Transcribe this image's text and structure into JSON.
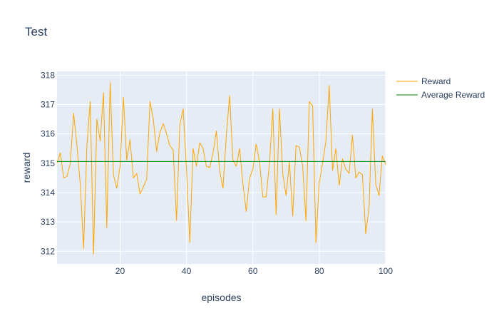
{
  "chart_data": {
    "type": "line",
    "title": "Test",
    "xlabel": "episodes",
    "ylabel": "reward",
    "xlim": [
      1,
      100
    ],
    "ylim": [
      311.57,
      318.13
    ],
    "x_ticks": [
      20,
      40,
      60,
      80,
      100
    ],
    "y_ticks": [
      312,
      313,
      314,
      315,
      316,
      317,
      318
    ],
    "grid": true,
    "legend": "top-right",
    "series": [
      {
        "name": "Reward",
        "color": "#ffa500",
        "values": [
          315.0,
          315.35,
          314.5,
          314.55,
          315.0,
          316.7,
          315.6,
          314.3,
          312.1,
          315.6,
          317.1,
          311.9,
          316.5,
          315.75,
          317.4,
          312.8,
          317.75,
          314.6,
          314.15,
          314.9,
          317.25,
          315.1,
          315.8,
          314.5,
          314.65,
          313.95,
          314.2,
          314.45,
          317.1,
          316.5,
          315.4,
          316.05,
          316.35,
          316.0,
          315.6,
          315.45,
          313.05,
          316.3,
          316.85,
          314.8,
          312.3,
          315.5,
          314.9,
          315.7,
          315.5,
          314.9,
          314.85,
          315.35,
          316.1,
          314.75,
          314.15,
          315.95,
          317.3,
          315.1,
          314.9,
          315.5,
          314.3,
          313.35,
          314.5,
          314.8,
          315.65,
          315.05,
          313.85,
          313.85,
          315.0,
          316.85,
          313.25,
          316.85,
          314.65,
          313.9,
          315.05,
          313.2,
          315.6,
          315.55,
          314.9,
          313.05,
          317.1,
          316.95,
          312.3,
          314.35,
          315.0,
          315.75,
          317.65,
          314.75,
          315.5,
          314.25,
          315.15,
          314.8,
          314.65,
          315.95,
          314.5,
          314.7,
          314.6,
          312.6,
          313.5,
          316.85,
          314.3,
          313.9,
          315.25,
          314.95
        ]
      },
      {
        "name": "Average Reward",
        "color": "#008000",
        "values": [
          315.06,
          315.06,
          315.06,
          315.06,
          315.06,
          315.06,
          315.06,
          315.06,
          315.06,
          315.06,
          315.06,
          315.06,
          315.06,
          315.06,
          315.06,
          315.06,
          315.06,
          315.06,
          315.06,
          315.06,
          315.06,
          315.06,
          315.06,
          315.06,
          315.06,
          315.06,
          315.06,
          315.06,
          315.06,
          315.06,
          315.06,
          315.06,
          315.06,
          315.06,
          315.06,
          315.06,
          315.06,
          315.06,
          315.06,
          315.06,
          315.06,
          315.06,
          315.06,
          315.06,
          315.06,
          315.06,
          315.06,
          315.06,
          315.06,
          315.06,
          315.06,
          315.06,
          315.06,
          315.06,
          315.06,
          315.06,
          315.06,
          315.06,
          315.06,
          315.06,
          315.06,
          315.06,
          315.06,
          315.06,
          315.06,
          315.06,
          315.06,
          315.06,
          315.06,
          315.06,
          315.06,
          315.06,
          315.06,
          315.06,
          315.06,
          315.06,
          315.06,
          315.06,
          315.06,
          315.06,
          315.06,
          315.06,
          315.06,
          315.06,
          315.06,
          315.06,
          315.06,
          315.06,
          315.06,
          315.06,
          315.06,
          315.06,
          315.06,
          315.06,
          315.06,
          315.06,
          315.06,
          315.06,
          315.06,
          315.06
        ]
      }
    ]
  }
}
